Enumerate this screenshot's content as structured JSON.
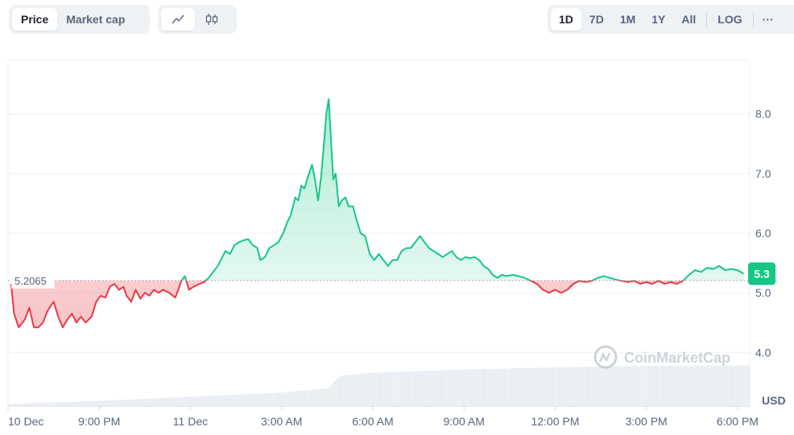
{
  "toolbar": {
    "price_tab": "Price",
    "market_cap_tab": "Market cap",
    "line_chart_icon": "line-chart-icon",
    "candlestick_icon": "candlestick-icon",
    "ranges": [
      "1D",
      "7D",
      "1M",
      "1Y",
      "All"
    ],
    "active_range": "1D",
    "log_label": "LOG",
    "more_label": "···"
  },
  "watermark": "CoinMarketCap",
  "colors": {
    "up": "#16c784",
    "down": "#ea3943",
    "grid": "#eff2f5",
    "axis_text": "#58667e",
    "volume": "#e9edf2"
  },
  "chart_data": {
    "type": "area",
    "baseline": 5.2065,
    "baseline_label": "5.2065",
    "current_price_label": "5.3",
    "unit_label": "USD",
    "ylim": [
      3.1,
      8.9
    ],
    "y_ticks": [
      4.0,
      5.0,
      6.0,
      7.0,
      8.0
    ],
    "y_tick_labels": [
      "4.0",
      "5.0",
      "6.0",
      "7.0",
      "8.0"
    ],
    "x_ticks": [
      {
        "t": 0,
        "label": "10 Dec"
      },
      {
        "t": 3,
        "label": "9:00 PM"
      },
      {
        "t": 6,
        "label": "11 Dec"
      },
      {
        "t": 9,
        "label": "3:00 AM"
      },
      {
        "t": 12,
        "label": "6:00 AM"
      },
      {
        "t": 15,
        "label": "9:00 AM"
      },
      {
        "t": 18,
        "label": "12:00 PM"
      },
      {
        "t": 21,
        "label": "3:00 PM"
      },
      {
        "t": 24,
        "label": "6:00 PM"
      }
    ],
    "x_range": [
      0,
      24.4
    ],
    "x_unit": "hours after 10 Dec 6:00 PM",
    "series": [
      {
        "values": [
          [
            0.1,
            5.15
          ],
          [
            0.2,
            4.65
          ],
          [
            0.35,
            4.42
          ],
          [
            0.55,
            4.55
          ],
          [
            0.7,
            4.75
          ],
          [
            0.85,
            4.42
          ],
          [
            1.0,
            4.42
          ],
          [
            1.15,
            4.5
          ],
          [
            1.3,
            4.7
          ],
          [
            1.5,
            4.85
          ],
          [
            1.65,
            4.6
          ],
          [
            1.8,
            4.42
          ],
          [
            1.95,
            4.55
          ],
          [
            2.1,
            4.65
          ],
          [
            2.25,
            4.5
          ],
          [
            2.4,
            4.6
          ],
          [
            2.55,
            4.5
          ],
          [
            2.75,
            4.6
          ],
          [
            2.9,
            4.85
          ],
          [
            3.05,
            4.95
          ],
          [
            3.2,
            4.92
          ],
          [
            3.35,
            5.1
          ],
          [
            3.5,
            5.15
          ],
          [
            3.65,
            5.05
          ],
          [
            3.8,
            5.1
          ],
          [
            3.9,
            4.95
          ],
          [
            4.05,
            4.85
          ],
          [
            4.2,
            5.05
          ],
          [
            4.35,
            4.9
          ],
          [
            4.5,
            5.0
          ],
          [
            4.65,
            4.95
          ],
          [
            4.8,
            5.05
          ],
          [
            4.95,
            5.0
          ],
          [
            5.1,
            5.05
          ],
          [
            5.3,
            5.0
          ],
          [
            5.5,
            4.92
          ],
          [
            5.6,
            5.05
          ],
          [
            5.7,
            5.2
          ],
          [
            5.82,
            5.28
          ],
          [
            5.95,
            5.05
          ],
          [
            6.1,
            5.1
          ],
          [
            6.3,
            5.15
          ],
          [
            6.45,
            5.18
          ],
          [
            6.6,
            5.25
          ],
          [
            6.75,
            5.35
          ],
          [
            6.9,
            5.45
          ],
          [
            7.05,
            5.6
          ],
          [
            7.15,
            5.7
          ],
          [
            7.3,
            5.65
          ],
          [
            7.45,
            5.8
          ],
          [
            7.6,
            5.85
          ],
          [
            7.75,
            5.88
          ],
          [
            7.9,
            5.9
          ],
          [
            8.05,
            5.8
          ],
          [
            8.2,
            5.75
          ],
          [
            8.3,
            5.55
          ],
          [
            8.45,
            5.6
          ],
          [
            8.6,
            5.75
          ],
          [
            8.75,
            5.8
          ],
          [
            8.9,
            5.85
          ],
          [
            9.05,
            6.0
          ],
          [
            9.2,
            6.2
          ],
          [
            9.3,
            6.3
          ],
          [
            9.45,
            6.6
          ],
          [
            9.55,
            6.55
          ],
          [
            9.65,
            6.8
          ],
          [
            9.75,
            6.75
          ],
          [
            9.9,
            7.0
          ],
          [
            10.0,
            7.15
          ],
          [
            10.1,
            6.9
          ],
          [
            10.2,
            6.55
          ],
          [
            10.3,
            6.95
          ],
          [
            10.4,
            7.55
          ],
          [
            10.47,
            8.0
          ],
          [
            10.55,
            8.25
          ],
          [
            10.62,
            7.6
          ],
          [
            10.7,
            6.9
          ],
          [
            10.78,
            7.0
          ],
          [
            10.88,
            6.45
          ],
          [
            10.98,
            6.55
          ],
          [
            11.1,
            6.6
          ],
          [
            11.2,
            6.45
          ],
          [
            11.35,
            6.45
          ],
          [
            11.45,
            6.25
          ],
          [
            11.6,
            6.0
          ],
          [
            11.75,
            5.95
          ],
          [
            11.9,
            5.65
          ],
          [
            12.05,
            5.55
          ],
          [
            12.2,
            5.65
          ],
          [
            12.35,
            5.55
          ],
          [
            12.5,
            5.45
          ],
          [
            12.65,
            5.55
          ],
          [
            12.8,
            5.55
          ],
          [
            12.95,
            5.7
          ],
          [
            13.1,
            5.75
          ],
          [
            13.25,
            5.75
          ],
          [
            13.4,
            5.85
          ],
          [
            13.55,
            5.95
          ],
          [
            13.7,
            5.85
          ],
          [
            13.85,
            5.75
          ],
          [
            14.0,
            5.7
          ],
          [
            14.15,
            5.65
          ],
          [
            14.3,
            5.6
          ],
          [
            14.45,
            5.65
          ],
          [
            14.6,
            5.7
          ],
          [
            14.75,
            5.6
          ],
          [
            14.9,
            5.55
          ],
          [
            15.05,
            5.6
          ],
          [
            15.2,
            5.58
          ],
          [
            15.35,
            5.6
          ],
          [
            15.5,
            5.55
          ],
          [
            15.65,
            5.45
          ],
          [
            15.8,
            5.4
          ],
          [
            15.95,
            5.3
          ],
          [
            16.1,
            5.25
          ],
          [
            16.25,
            5.3
          ],
          [
            16.4,
            5.28
          ],
          [
            16.6,
            5.3
          ],
          [
            16.8,
            5.28
          ],
          [
            17.0,
            5.25
          ],
          [
            17.2,
            5.2
          ],
          [
            17.4,
            5.15
          ],
          [
            17.6,
            5.05
          ],
          [
            17.8,
            5.0
          ],
          [
            18.0,
            5.05
          ],
          [
            18.2,
            5.0
          ],
          [
            18.4,
            5.05
          ],
          [
            18.6,
            5.15
          ],
          [
            18.8,
            5.2
          ],
          [
            19.0,
            5.18
          ],
          [
            19.2,
            5.2
          ],
          [
            19.4,
            5.25
          ],
          [
            19.6,
            5.28
          ],
          [
            19.8,
            5.25
          ],
          [
            20.0,
            5.22
          ],
          [
            20.2,
            5.2
          ],
          [
            20.4,
            5.18
          ],
          [
            20.6,
            5.2
          ],
          [
            20.8,
            5.15
          ],
          [
            21.0,
            5.18
          ],
          [
            21.2,
            5.15
          ],
          [
            21.4,
            5.2
          ],
          [
            21.6,
            5.15
          ],
          [
            21.8,
            5.18
          ],
          [
            22.0,
            5.15
          ],
          [
            22.2,
            5.2
          ],
          [
            22.4,
            5.3
          ],
          [
            22.6,
            5.38
          ],
          [
            22.8,
            5.35
          ],
          [
            23.0,
            5.42
          ],
          [
            23.2,
            5.4
          ],
          [
            23.4,
            5.45
          ],
          [
            23.6,
            5.38
          ],
          [
            23.8,
            5.4
          ],
          [
            24.0,
            5.38
          ],
          [
            24.2,
            5.32
          ]
        ]
      },
      {
        "volume": [
          [
            0,
            0.04
          ],
          [
            3,
            0.1
          ],
          [
            6,
            0.18
          ],
          [
            9,
            0.26
          ],
          [
            10.5,
            0.34
          ],
          [
            10.9,
            0.58
          ],
          [
            12,
            0.64
          ],
          [
            15,
            0.7
          ],
          [
            18,
            0.74
          ],
          [
            21,
            0.77
          ],
          [
            24.4,
            0.78
          ]
        ]
      }
    ],
    "xlabel": "",
    "ylabel": "",
    "grid": true
  }
}
